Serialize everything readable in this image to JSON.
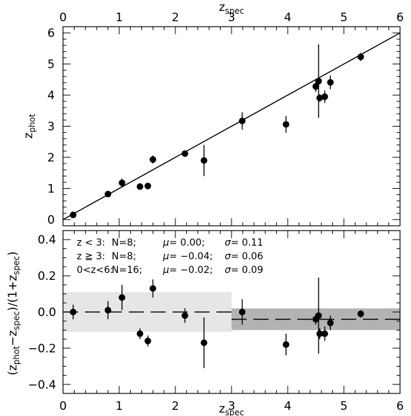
{
  "chart_data": [
    {
      "type": "scatter",
      "panel": "top",
      "xlabel": "z",
      "xlabel_sub": "spec",
      "ylabel": "z",
      "ylabel_sub": "phot",
      "xlim": [
        0,
        6
      ],
      "ylim": [
        -0.2,
        6.2
      ],
      "xticks": [
        "0",
        "1",
        "2",
        "3",
        "4",
        "5",
        "6"
      ],
      "yticks": [
        "0",
        "1",
        "2",
        "3",
        "4",
        "5",
        "6"
      ],
      "one_to_one_line": true,
      "points": [
        {
          "x": 0.18,
          "y": 0.15,
          "err": 0.08
        },
        {
          "x": 0.8,
          "y": 0.82,
          "err": 0.1
        },
        {
          "x": 1.05,
          "y": 1.18,
          "err": 0.14
        },
        {
          "x": 1.37,
          "y": 1.06,
          "err": 0.06
        },
        {
          "x": 1.51,
          "y": 1.08,
          "err": 0.06
        },
        {
          "x": 1.6,
          "y": 1.93,
          "err": 0.13
        },
        {
          "x": 2.17,
          "y": 2.12,
          "err": 0.1
        },
        {
          "x": 2.51,
          "y": 1.9,
          "err": 0.5
        },
        {
          "x": 3.19,
          "y": 3.17,
          "err": 0.28
        },
        {
          "x": 3.97,
          "y": 3.06,
          "err": 0.27
        },
        {
          "x": 4.5,
          "y": 4.28,
          "err": 0.18
        },
        {
          "x": 4.55,
          "y": 4.45,
          "err": 1.18
        },
        {
          "x": 4.57,
          "y": 3.91,
          "err": 0.12
        },
        {
          "x": 4.66,
          "y": 3.95,
          "err": 0.2
        },
        {
          "x": 4.76,
          "y": 4.41,
          "err": 0.22
        },
        {
          "x": 5.3,
          "y": 5.23,
          "err": 0.13
        }
      ]
    },
    {
      "type": "scatter",
      "panel": "bottom",
      "xlabel": "z",
      "xlabel_sub": "spec",
      "ylabel_parts": [
        "(z",
        "phot",
        "−z",
        "spec",
        ")/(1+z",
        "spec",
        ")"
      ],
      "xlim": [
        0,
        6
      ],
      "ylim": [
        -0.45,
        0.45
      ],
      "xticks": [
        "0",
        "1",
        "2",
        "3",
        "4",
        "5",
        "6"
      ],
      "yticks": [
        "−0.4",
        "−0.2",
        "0.0",
        "0.2",
        "0.4"
      ],
      "ytick_values": [
        -0.4,
        -0.2,
        0.0,
        0.2,
        0.4
      ],
      "bands": [
        {
          "x0": 0,
          "x1": 3,
          "mean": 0.0,
          "sigma": 0.11,
          "color": "#e6e6e6"
        },
        {
          "x0": 3,
          "x1": 6,
          "mean": -0.04,
          "sigma": 0.06,
          "color": "#b3b3b3"
        }
      ],
      "points": [
        {
          "x": 0.18,
          "y": 0.0,
          "err": 0.04
        },
        {
          "x": 0.8,
          "y": 0.01,
          "err": 0.05
        },
        {
          "x": 1.05,
          "y": 0.08,
          "err": 0.07
        },
        {
          "x": 1.37,
          "y": -0.12,
          "err": 0.03
        },
        {
          "x": 1.51,
          "y": -0.16,
          "err": 0.03
        },
        {
          "x": 1.6,
          "y": 0.13,
          "err": 0.05
        },
        {
          "x": 2.17,
          "y": -0.02,
          "err": 0.04
        },
        {
          "x": 2.51,
          "y": -0.17,
          "err": 0.14
        },
        {
          "x": 3.19,
          "y": 0.0,
          "err": 0.07
        },
        {
          "x": 3.97,
          "y": -0.18,
          "err": 0.06
        },
        {
          "x": 4.5,
          "y": -0.04,
          "err": 0.03
        },
        {
          "x": 4.55,
          "y": -0.02,
          "err": 0.21
        },
        {
          "x": 4.57,
          "y": -0.12,
          "err": 0.03
        },
        {
          "x": 4.66,
          "y": -0.12,
          "err": 0.04
        },
        {
          "x": 4.76,
          "y": -0.06,
          "err": 0.04
        },
        {
          "x": 5.3,
          "y": -0.01,
          "err": 0.02
        }
      ],
      "stats": [
        {
          "label": "z < 3:",
          "n": "N=8;",
          "mu_label": "μ=",
          "mu": "0.00;",
          "sigma_label": "σ=",
          "sigma": "0.11"
        },
        {
          "label": "z ≧ 3:",
          "n": "N=8;",
          "mu_label": "μ=",
          "mu": "−0.04;",
          "sigma_label": "σ=",
          "sigma": "0.06"
        },
        {
          "label": "0<z<6:",
          "n": "N=16;",
          "mu_label": "μ=",
          "mu": "−0.02;",
          "sigma_label": "σ=",
          "sigma": "0.09"
        }
      ]
    }
  ]
}
